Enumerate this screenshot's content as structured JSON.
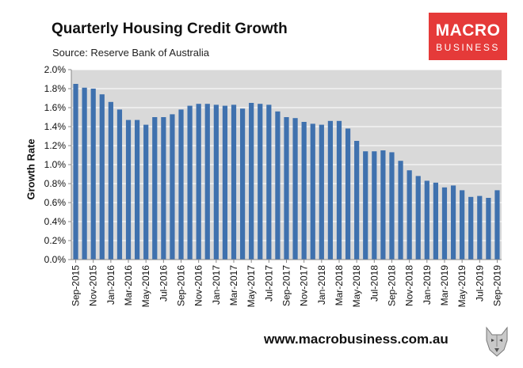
{
  "header": {
    "title": "Quarterly Housing Credit Growth",
    "subtitle": "Source: Reserve Bank of Australia"
  },
  "logo": {
    "line1": "MACRO",
    "line2": "BUSINESS",
    "bg_color": "#e53a39"
  },
  "footer": {
    "url": "www.macrobusiness.com.au"
  },
  "colors": {
    "bar": "#3f71ae",
    "plot_bg": "#d9d9d9",
    "grid": "#ffffff"
  },
  "chart_data": {
    "type": "bar",
    "ylabel": "Growth Rate",
    "ylim": [
      0,
      0.02
    ],
    "yticks": [
      "0.0%",
      "0.2%",
      "0.4%",
      "0.6%",
      "0.8%",
      "1.0%",
      "1.2%",
      "1.4%",
      "1.6%",
      "1.8%",
      "2.0%"
    ],
    "grid": true,
    "xtick_labels": [
      "Sep-2015",
      "Nov-2015",
      "Jan-2016",
      "Mar-2016",
      "May-2016",
      "Jul-2016",
      "Sep-2016",
      "Nov-2016",
      "Jan-2017",
      "Mar-2017",
      "May-2017",
      "Jul-2017",
      "Sep-2017",
      "Nov-2017",
      "Jan-2018",
      "Mar-2018",
      "May-2018",
      "Jul-2018",
      "Sep-2018",
      "Nov-2018",
      "Jan-2019",
      "Mar-2019",
      "May-2019",
      "Jul-2019",
      "Sep-2019"
    ],
    "categories": [
      "Sep-2015",
      "Oct-2015",
      "Nov-2015",
      "Dec-2015",
      "Jan-2016",
      "Feb-2016",
      "Mar-2016",
      "Apr-2016",
      "May-2016",
      "Jun-2016",
      "Jul-2016",
      "Aug-2016",
      "Sep-2016",
      "Oct-2016",
      "Nov-2016",
      "Dec-2016",
      "Jan-2017",
      "Feb-2017",
      "Mar-2017",
      "Apr-2017",
      "May-2017",
      "Jun-2017",
      "Jul-2017",
      "Aug-2017",
      "Sep-2017",
      "Oct-2017",
      "Nov-2017",
      "Dec-2017",
      "Jan-2018",
      "Feb-2018",
      "Mar-2018",
      "Apr-2018",
      "May-2018",
      "Jun-2018",
      "Jul-2018",
      "Aug-2018",
      "Sep-2018",
      "Oct-2018",
      "Nov-2018",
      "Dec-2018",
      "Jan-2019",
      "Feb-2019",
      "Mar-2019",
      "Apr-2019",
      "May-2019",
      "Jun-2019",
      "Jul-2019",
      "Aug-2019",
      "Sep-2019"
    ],
    "values": [
      0.0185,
      0.0181,
      0.018,
      0.0174,
      0.0166,
      0.0158,
      0.0147,
      0.0147,
      0.0142,
      0.015,
      0.015,
      0.0153,
      0.0158,
      0.0162,
      0.0164,
      0.0164,
      0.0163,
      0.0162,
      0.0163,
      0.0159,
      0.0165,
      0.0164,
      0.0163,
      0.0156,
      0.015,
      0.0149,
      0.0145,
      0.0143,
      0.0142,
      0.0146,
      0.0146,
      0.0138,
      0.0125,
      0.0114,
      0.0114,
      0.0115,
      0.0113,
      0.0104,
      0.0094,
      0.0088,
      0.0083,
      0.0081,
      0.0076,
      0.0078,
      0.0073,
      0.0066,
      0.0067,
      0.0065,
      0.0073
    ]
  }
}
